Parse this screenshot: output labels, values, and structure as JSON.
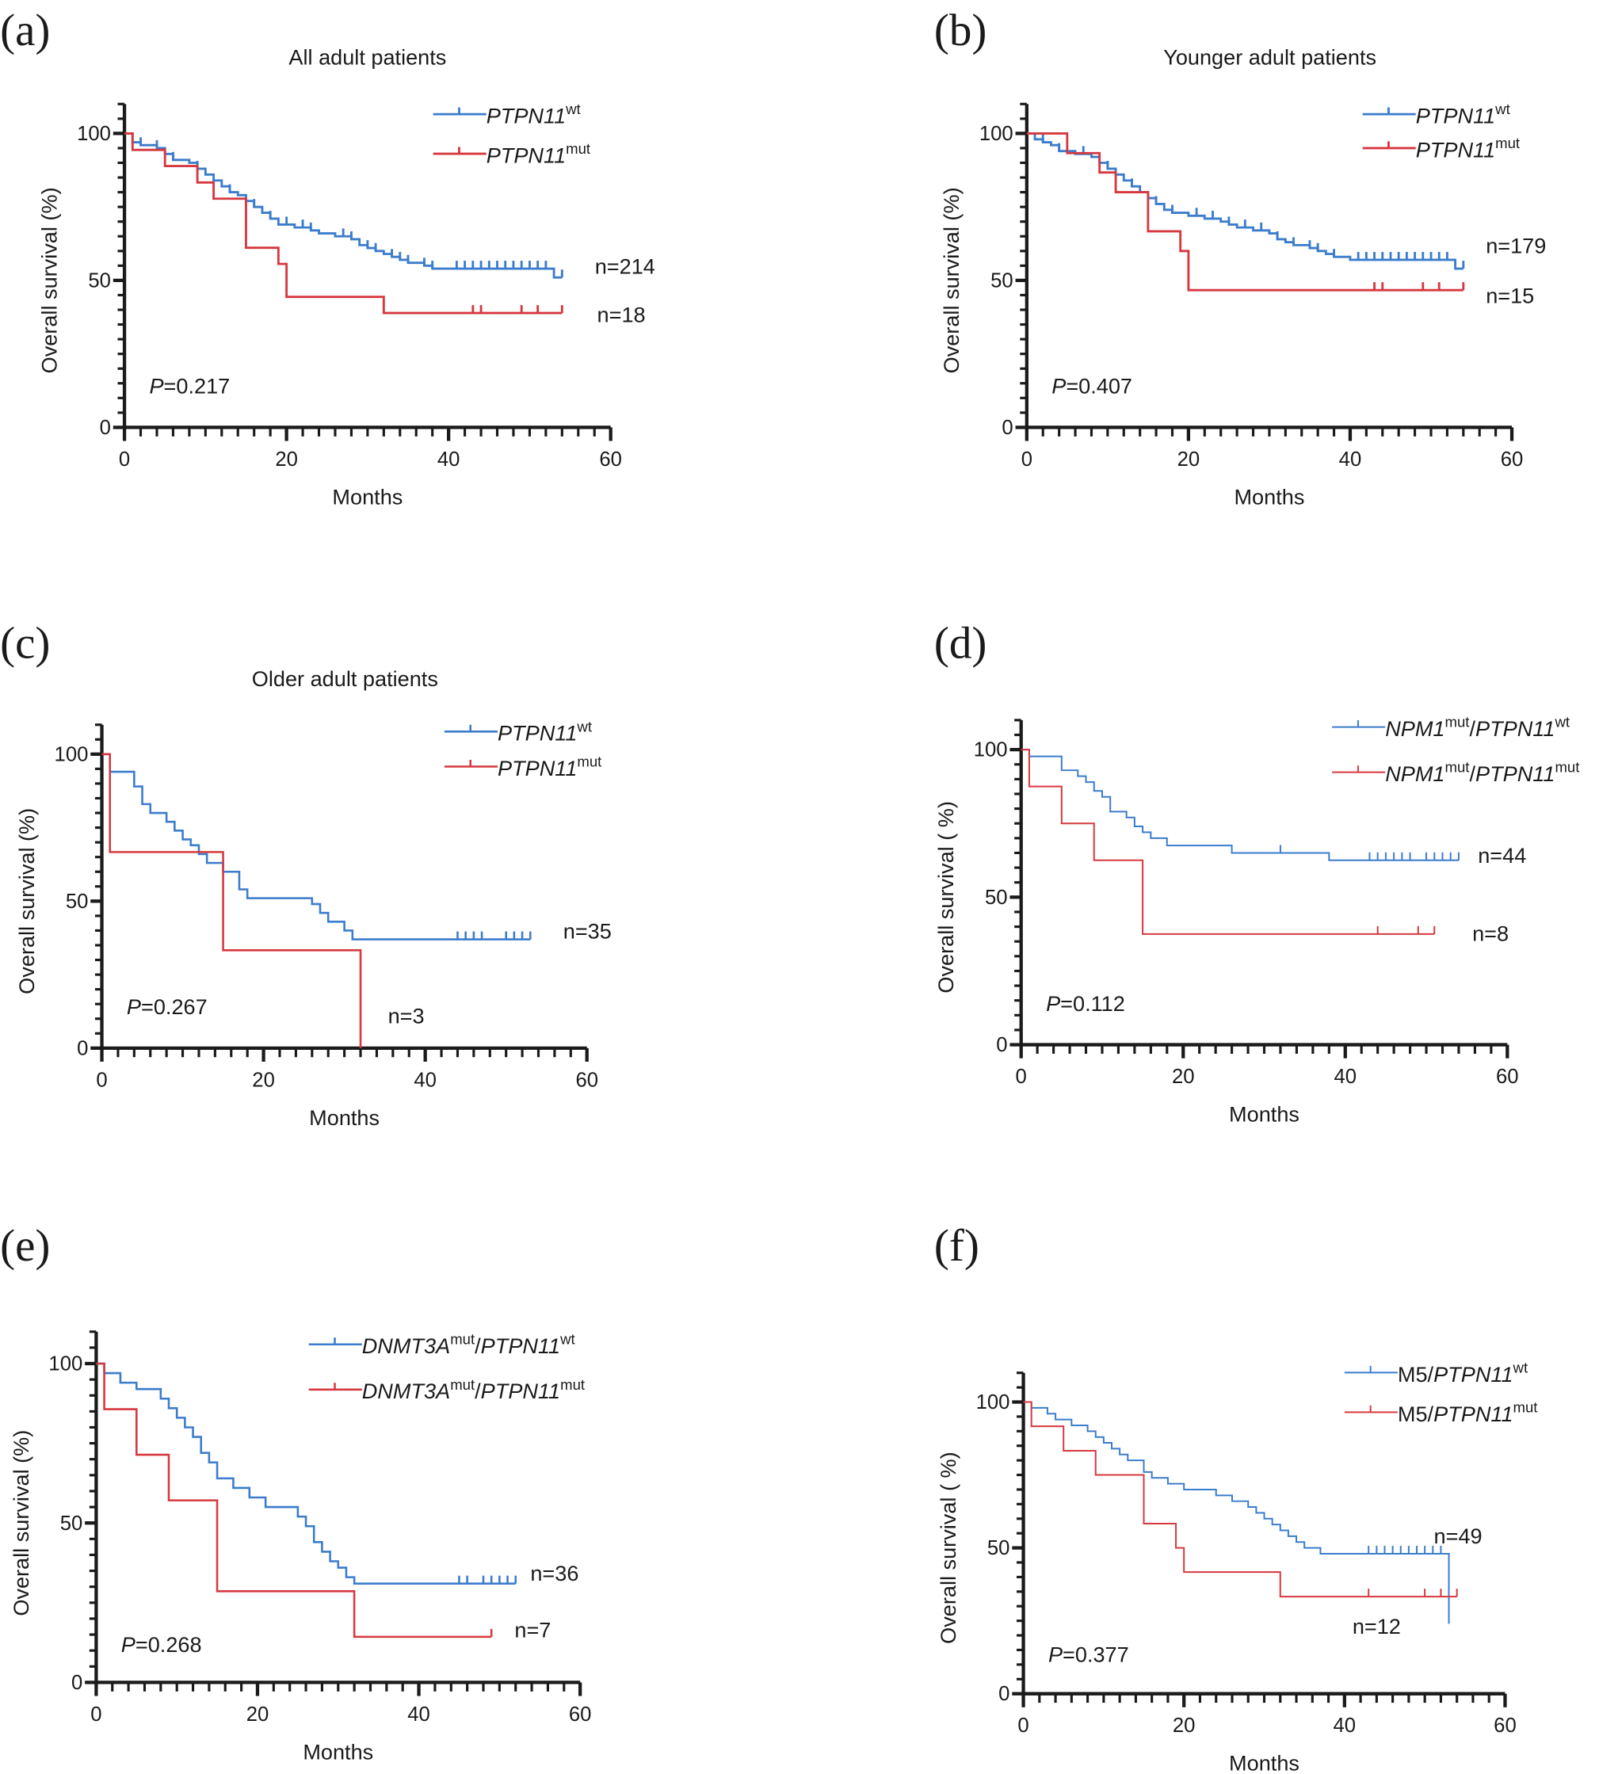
{
  "colors": {
    "wt": "#3b7ccc",
    "mut": "#d6383f",
    "axis": "#1a1a1a"
  },
  "chart_data": [
    {
      "type": "line",
      "subtype": "kaplan-meier",
      "panel": "(a)",
      "title": "All adult patients",
      "xlabel": "Months",
      "ylabel": "Overall survival (%)",
      "xlim": [
        0,
        60
      ],
      "ylim": [
        0,
        100
      ],
      "xticks": [
        "0",
        "20",
        "40",
        "60"
      ],
      "yticks": [
        "0",
        "50",
        "100"
      ],
      "legend_position": "top-right",
      "p_value": {
        "symbol": "P",
        "text": "=0.217"
      },
      "series": [
        {
          "name": "PTPN11",
          "sup": "wt",
          "color_key": "wt",
          "n_label": "n=214",
          "end": 54,
          "steps": [
            [
              1,
              97
            ],
            [
              2,
              96
            ],
            [
              4,
              95
            ],
            [
              5,
              93
            ],
            [
              6,
              91
            ],
            [
              8,
              90
            ],
            [
              9,
              88
            ],
            [
              10,
              86
            ],
            [
              11,
              84
            ],
            [
              12,
              82
            ],
            [
              13,
              80
            ],
            [
              14,
              79
            ],
            [
              15,
              77
            ],
            [
              16,
              75
            ],
            [
              17,
              73
            ],
            [
              18,
              71
            ],
            [
              19,
              69
            ],
            [
              21,
              68
            ],
            [
              23,
              67
            ],
            [
              24,
              66
            ],
            [
              26,
              65
            ],
            [
              28,
              64
            ],
            [
              29,
              62
            ],
            [
              30,
              61
            ],
            [
              31,
              60
            ],
            [
              32,
              59
            ],
            [
              33,
              58
            ],
            [
              34,
              57
            ],
            [
              35,
              56
            ],
            [
              37,
              55
            ],
            [
              38,
              54
            ],
            [
              53,
              51
            ]
          ],
          "censored": [
            2,
            4,
            6,
            9,
            13,
            16,
            18,
            20,
            22,
            23,
            27,
            28,
            30,
            31,
            33,
            34,
            35,
            37,
            38,
            41,
            42,
            43,
            44,
            45,
            46,
            47,
            48,
            49,
            50,
            51,
            52,
            54
          ]
        },
        {
          "name": "PTPN11",
          "sup": "mut",
          "color_key": "mut",
          "n_label": "n=18",
          "end": 54,
          "steps": [
            [
              1,
              94.4
            ],
            [
              5,
              88.9
            ],
            [
              9,
              83.3
            ],
            [
              11,
              77.8
            ],
            [
              15,
              61.1
            ],
            [
              19,
              55.6
            ],
            [
              20,
              44.4
            ],
            [
              32,
              38.9
            ]
          ],
          "censored": [
            43,
            44,
            49,
            51,
            54
          ]
        }
      ]
    },
    {
      "type": "line",
      "subtype": "kaplan-meier",
      "panel": "(b)",
      "title": "Younger adult patients",
      "xlabel": "Months",
      "ylabel": "Overall survival (%)",
      "xlim": [
        0,
        60
      ],
      "ylim": [
        0,
        100
      ],
      "xticks": [
        "0",
        "20",
        "40",
        "60"
      ],
      "yticks": [
        "0",
        "50",
        "100"
      ],
      "legend_position": "top-right",
      "p_value": {
        "symbol": "P",
        "text": "=0.407"
      },
      "series": [
        {
          "name": "PTPN11",
          "sup": "wt",
          "color_key": "wt",
          "n_label": "n=179",
          "end": 54,
          "steps": [
            [
              1,
              98
            ],
            [
              2,
              97
            ],
            [
              3,
              96
            ],
            [
              4,
              94
            ],
            [
              6,
              93
            ],
            [
              8,
              92
            ],
            [
              9,
              90
            ],
            [
              10,
              88
            ],
            [
              11,
              86
            ],
            [
              12,
              84
            ],
            [
              13,
              82
            ],
            [
              14,
              80
            ],
            [
              15,
              78
            ],
            [
              16,
              76
            ],
            [
              17,
              74
            ],
            [
              18,
              73
            ],
            [
              20,
              72
            ],
            [
              22,
              71
            ],
            [
              24,
              70
            ],
            [
              25,
              69
            ],
            [
              26,
              68
            ],
            [
              28,
              67
            ],
            [
              30,
              66
            ],
            [
              31,
              64
            ],
            [
              32,
              63
            ],
            [
              33,
              62
            ],
            [
              35,
              61
            ],
            [
              36,
              60
            ],
            [
              37,
              59
            ],
            [
              38,
              58
            ],
            [
              40,
              57
            ],
            [
              53,
              54
            ]
          ],
          "censored": [
            2,
            4,
            7,
            10,
            13,
            16,
            18,
            21,
            23,
            25,
            27,
            29,
            31,
            33,
            35,
            36,
            38,
            41,
            42,
            43,
            44,
            45,
            46,
            47,
            48,
            49,
            50,
            51,
            52,
            54
          ]
        },
        {
          "name": "PTPN11",
          "sup": "mut",
          "color_key": "mut",
          "n_label": "n=15",
          "end": 54,
          "steps": [
            [
              5,
              93.3
            ],
            [
              9,
              86.7
            ],
            [
              11,
              80
            ],
            [
              15,
              66.7
            ],
            [
              19,
              60
            ],
            [
              20,
              46.7
            ]
          ],
          "censored": [
            43,
            44,
            49,
            51,
            54
          ]
        }
      ]
    },
    {
      "type": "line",
      "subtype": "kaplan-meier",
      "panel": "(c)",
      "title": "Older adult patients",
      "xlabel": "Months",
      "ylabel": "Overall survival (%)",
      "xlim": [
        0,
        60
      ],
      "ylim": [
        0,
        100
      ],
      "xticks": [
        "0",
        "20",
        "40",
        "60"
      ],
      "yticks": [
        "0",
        "50",
        "100"
      ],
      "legend_position": "top-right",
      "p_value": {
        "symbol": "P",
        "text": "=0.267"
      },
      "series": [
        {
          "name": "PTPN11",
          "sup": "wt",
          "color_key": "wt",
          "n_label": "n=35",
          "end": 53,
          "steps": [
            [
              1,
              94
            ],
            [
              4,
              89
            ],
            [
              5,
              83
            ],
            [
              6,
              80
            ],
            [
              8,
              77
            ],
            [
              9,
              74
            ],
            [
              10,
              71
            ],
            [
              11,
              69
            ],
            [
              12,
              66
            ],
            [
              13,
              63
            ],
            [
              15,
              60
            ],
            [
              17,
              54
            ],
            [
              18,
              51
            ],
            [
              26,
              49
            ],
            [
              27,
              46
            ],
            [
              28,
              43
            ],
            [
              30,
              40
            ],
            [
              31,
              37
            ]
          ],
          "censored": [
            44,
            45,
            46,
            47,
            50,
            51,
            52,
            53
          ]
        },
        {
          "name": "PTPN11",
          "sup": "mut",
          "color_key": "mut",
          "n_label": "n=3",
          "end": 32,
          "steps": [
            [
              1,
              66.7
            ],
            [
              15,
              33.3
            ],
            [
              32,
              0
            ]
          ],
          "censored": []
        }
      ]
    },
    {
      "type": "line",
      "subtype": "kaplan-meier",
      "panel": "(d)",
      "title": "",
      "xlabel": "Months",
      "ylabel": "Overall survival ( %)",
      "xlim": [
        0,
        60
      ],
      "ylim": [
        0,
        100
      ],
      "xticks": [
        "0",
        "20",
        "40",
        "60"
      ],
      "yticks": [
        "0",
        "50",
        "100"
      ],
      "legend_position": "top-right",
      "p_value": {
        "symbol": "P",
        "text": "=0.112"
      },
      "series": [
        {
          "prefix": "NPM1",
          "prefix_sup": "mut",
          "name": "PTPN11",
          "sup": "wt",
          "color_key": "wt",
          "n_label": "n=44",
          "end": 54,
          "steps": [
            [
              1,
              97.7
            ],
            [
              5,
              93
            ],
            [
              7,
              91
            ],
            [
              8,
              89
            ],
            [
              9,
              86
            ],
            [
              10,
              84
            ],
            [
              11,
              79
            ],
            [
              13,
              77
            ],
            [
              14,
              74
            ],
            [
              15,
              72
            ],
            [
              16,
              70
            ],
            [
              18,
              67.5
            ],
            [
              26,
              65
            ],
            [
              38,
              62.5
            ]
          ],
          "censored": [
            32,
            43,
            44,
            45,
            46,
            47,
            48,
            50,
            51,
            52,
            53,
            54
          ]
        },
        {
          "prefix": "NPM1",
          "prefix_sup": "mut",
          "name": "PTPN11",
          "sup": "mut",
          "color_key": "mut",
          "n_label": "n=8",
          "end": 51,
          "steps": [
            [
              1,
              87.5
            ],
            [
              5,
              75
            ],
            [
              9,
              62.5
            ],
            [
              15,
              37.5
            ]
          ],
          "censored": [
            44,
            49,
            51
          ]
        }
      ]
    },
    {
      "type": "line",
      "subtype": "kaplan-meier",
      "panel": "(e)",
      "title": "",
      "xlabel": "Months",
      "ylabel": "Overall survival (%)",
      "xlim": [
        0,
        60
      ],
      "ylim": [
        0,
        100
      ],
      "xticks": [
        "0",
        "20",
        "40",
        "60"
      ],
      "yticks": [
        "0",
        "50",
        "100"
      ],
      "legend_position": "top-right",
      "p_value": {
        "symbol": "P",
        "text": "=0.268"
      },
      "series": [
        {
          "prefix": "DNMT3A",
          "prefix_sup": "mut",
          "name": "PTPN11",
          "sup": "wt",
          "color_key": "wt",
          "n_label": "n=36",
          "end": 52,
          "steps": [
            [
              1,
              97
            ],
            [
              3,
              94
            ],
            [
              5,
              92
            ],
            [
              8,
              89
            ],
            [
              9,
              86
            ],
            [
              10,
              83
            ],
            [
              11,
              80
            ],
            [
              12,
              77
            ],
            [
              13,
              72
            ],
            [
              14,
              69
            ],
            [
              15,
              64
            ],
            [
              17,
              61
            ],
            [
              19,
              58
            ],
            [
              21,
              55
            ],
            [
              25,
              52
            ],
            [
              26,
              49
            ],
            [
              27,
              44
            ],
            [
              28,
              41
            ],
            [
              29,
              38
            ],
            [
              30,
              36
            ],
            [
              31,
              33
            ],
            [
              32,
              31
            ]
          ],
          "censored": [
            45,
            46,
            48,
            49,
            50,
            51,
            52
          ]
        },
        {
          "prefix": "DNMT3A",
          "prefix_sup": "mut",
          "name": "PTPN11",
          "sup": "mut",
          "color_key": "mut",
          "n_label": "n=7",
          "end": 49,
          "steps": [
            [
              1,
              85.7
            ],
            [
              5,
              71.4
            ],
            [
              9,
              57.1
            ],
            [
              15,
              28.6
            ],
            [
              32,
              14.3
            ]
          ],
          "censored": [
            49
          ]
        }
      ]
    },
    {
      "type": "line",
      "subtype": "kaplan-meier",
      "panel": "(f)",
      "title": "",
      "xlabel": "Months",
      "ylabel": "Overall survival ( %)",
      "xlim": [
        0,
        60
      ],
      "ylim": [
        0,
        100
      ],
      "xticks": [
        "0",
        "20",
        "40",
        "60"
      ],
      "yticks": [
        "0",
        "50",
        "100"
      ],
      "legend_position": "top-right",
      "p_value": {
        "symbol": "P",
        "text": "=0.377"
      },
      "series": [
        {
          "prefix_plain": "M5/",
          "name": "PTPN11",
          "sup": "wt",
          "color_key": "wt",
          "n_label": "n=49",
          "end": 53,
          "steps": [
            [
              1,
              98
            ],
            [
              3,
              96
            ],
            [
              4,
              94
            ],
            [
              6,
              92
            ],
            [
              8,
              90
            ],
            [
              9,
              88
            ],
            [
              10,
              86
            ],
            [
              11,
              84
            ],
            [
              12,
              82
            ],
            [
              13,
              80
            ],
            [
              15,
              76
            ],
            [
              16,
              74
            ],
            [
              18,
              72
            ],
            [
              20,
              70
            ],
            [
              24,
              68
            ],
            [
              26,
              66
            ],
            [
              28,
              64
            ],
            [
              29,
              62
            ],
            [
              30,
              60
            ],
            [
              31,
              58
            ],
            [
              32,
              56
            ],
            [
              33,
              54
            ],
            [
              34,
              52
            ],
            [
              35,
              50
            ],
            [
              37,
              48
            ],
            [
              53,
              24
            ]
          ],
          "censored": [
            43,
            44,
            45,
            46,
            47,
            48,
            49,
            50,
            51,
            52
          ]
        },
        {
          "prefix_plain": "M5/",
          "name": "PTPN11",
          "sup": "mut",
          "color_key": "mut",
          "n_label": "n=12",
          "end": 54,
          "steps": [
            [
              1,
              91.7
            ],
            [
              5,
              83.3
            ],
            [
              9,
              75
            ],
            [
              15,
              58.3
            ],
            [
              19,
              50
            ],
            [
              20,
              41.7
            ],
            [
              32,
              33.3
            ]
          ],
          "censored": [
            43,
            50,
            52,
            54
          ]
        }
      ]
    }
  ]
}
